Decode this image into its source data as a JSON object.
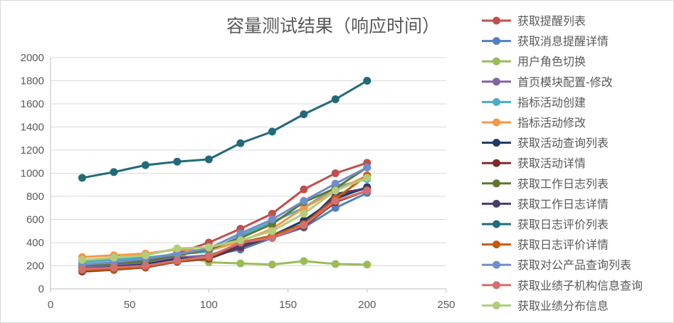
{
  "chart_data": {
    "type": "line",
    "title": "容量测试结果（响应时间）",
    "xlim": [
      0,
      250
    ],
    "ylim": [
      0,
      2000
    ],
    "x_ticks": [
      0,
      50,
      100,
      150,
      200,
      250
    ],
    "y_ticks": [
      0,
      200,
      400,
      600,
      800,
      1000,
      1200,
      1400,
      1600,
      1800,
      2000
    ],
    "gridlines": "horizontal",
    "legend_position": "right",
    "x": [
      20,
      40,
      60,
      80,
      100,
      120,
      140,
      160,
      180,
      200
    ],
    "series": [
      {
        "name": "获取提醒列表",
        "color": "#c0504d",
        "values": [
          200,
          220,
          250,
          310,
          400,
          520,
          650,
          860,
          1000,
          1090
        ]
      },
      {
        "name": "获取消息提醒详情",
        "color": "#4f81bd",
        "values": [
          180,
          200,
          220,
          260,
          290,
          340,
          440,
          530,
          700,
          830
        ]
      },
      {
        "name": "用户角色切换",
        "color": "#9bbb59",
        "values": [
          240,
          260,
          270,
          300,
          230,
          220,
          210,
          240,
          215,
          210
        ]
      },
      {
        "name": "首页模块配置-修改",
        "color": "#8064a2",
        "values": [
          190,
          210,
          230,
          270,
          290,
          380,
          460,
          560,
          800,
          870
        ]
      },
      {
        "name": "指标活动创建",
        "color": "#4bacc6",
        "values": [
          230,
          250,
          270,
          300,
          320,
          460,
          580,
          700,
          880,
          950
        ]
      },
      {
        "name": "指标活动修改",
        "color": "#f79646",
        "values": [
          275,
          290,
          305,
          340,
          330,
          410,
          520,
          700,
          850,
          980
        ]
      },
      {
        "name": "获取活动查询列表",
        "color": "#1f3864",
        "values": [
          170,
          190,
          210,
          260,
          270,
          370,
          460,
          590,
          780,
          880
        ]
      },
      {
        "name": "获取活动详情",
        "color": "#7b2c2a",
        "values": [
          150,
          165,
          185,
          235,
          260,
          360,
          450,
          540,
          750,
          850
        ]
      },
      {
        "name": "获取工作日志列表",
        "color": "#5f7530",
        "values": [
          200,
          220,
          240,
          290,
          340,
          440,
          560,
          750,
          870,
          1050
        ]
      },
      {
        "name": "获取工作日志详情",
        "color": "#4a3c68",
        "values": [
          160,
          175,
          195,
          240,
          270,
          370,
          450,
          550,
          820,
          870
        ]
      },
      {
        "name": "获取日志评价列表",
        "color": "#226a7a",
        "values": [
          960,
          1010,
          1070,
          1100,
          1120,
          1260,
          1360,
          1510,
          1640,
          1800
        ]
      },
      {
        "name": "获取日志评价详情",
        "color": "#c55a11",
        "values": [
          160,
          170,
          190,
          240,
          270,
          400,
          460,
          560,
          780,
          980
        ]
      },
      {
        "name": "获取对公产品查询列表",
        "color": "#6f8fc8",
        "values": [
          210,
          230,
          260,
          300,
          350,
          480,
          600,
          760,
          910,
          1050
        ]
      },
      {
        "name": "获取业绩子机构信息查询",
        "color": "#d46f6d",
        "values": [
          170,
          185,
          200,
          245,
          280,
          400,
          440,
          550,
          760,
          850
        ]
      },
      {
        "name": "获取业绩分布信息",
        "color": "#b3cd7a",
        "values": [
          250,
          270,
          290,
          350,
          360,
          420,
          500,
          650,
          850,
          960
        ]
      }
    ]
  }
}
